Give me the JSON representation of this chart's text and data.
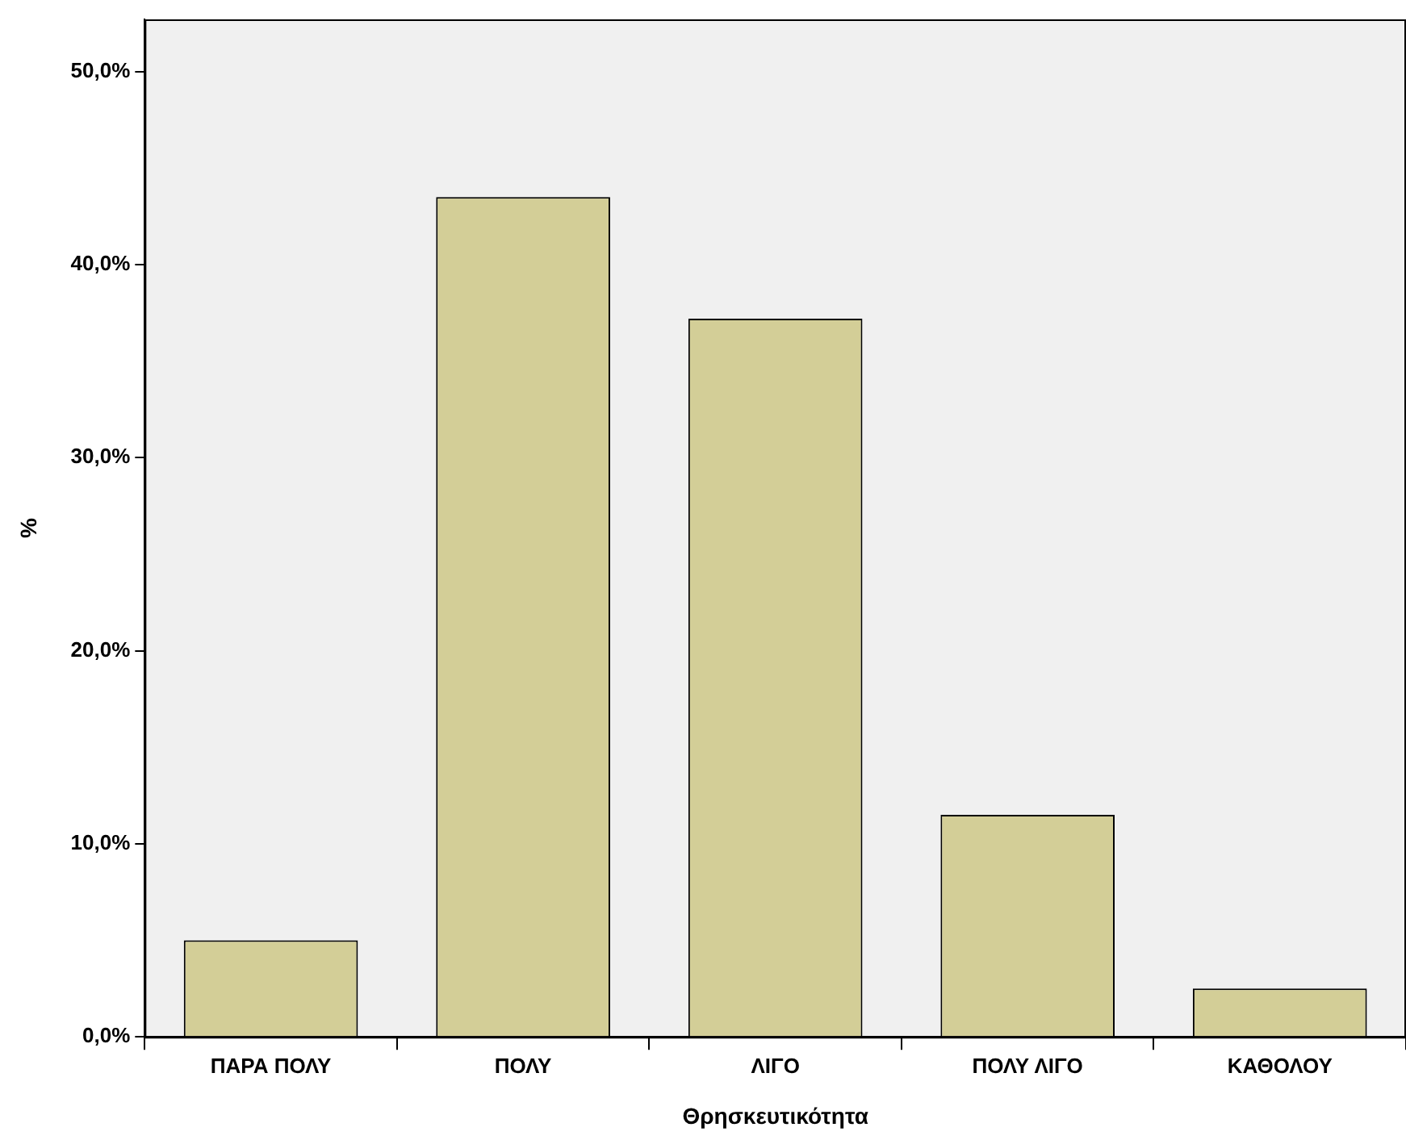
{
  "chart_data": {
    "type": "bar",
    "xlabel": "Θρησκευτικότητα",
    "ylabel": "%",
    "categories": [
      "ΠΑΡΑ ΠΟΛΥ",
      "ΠΟΛΥ",
      "ΛΙΓΟ",
      "ΠΟΛΥ ΛΙΓΟ",
      "ΚΑΘΟΛΟΥ"
    ],
    "values": [
      5.0,
      43.5,
      37.2,
      11.5,
      2.5
    ],
    "color": "#d3ce97",
    "ylim": [
      0,
      52.7
    ],
    "yticks": [
      {
        "value": 0,
        "label": "0,0%"
      },
      {
        "value": 10,
        "label": "10,0%"
      },
      {
        "value": 20,
        "label": "20,0%"
      },
      {
        "value": 30,
        "label": "30,0%"
      },
      {
        "value": 40,
        "label": "40,0%"
      },
      {
        "value": 50,
        "label": "50,0%"
      }
    ],
    "grid": false,
    "legend": false
  }
}
